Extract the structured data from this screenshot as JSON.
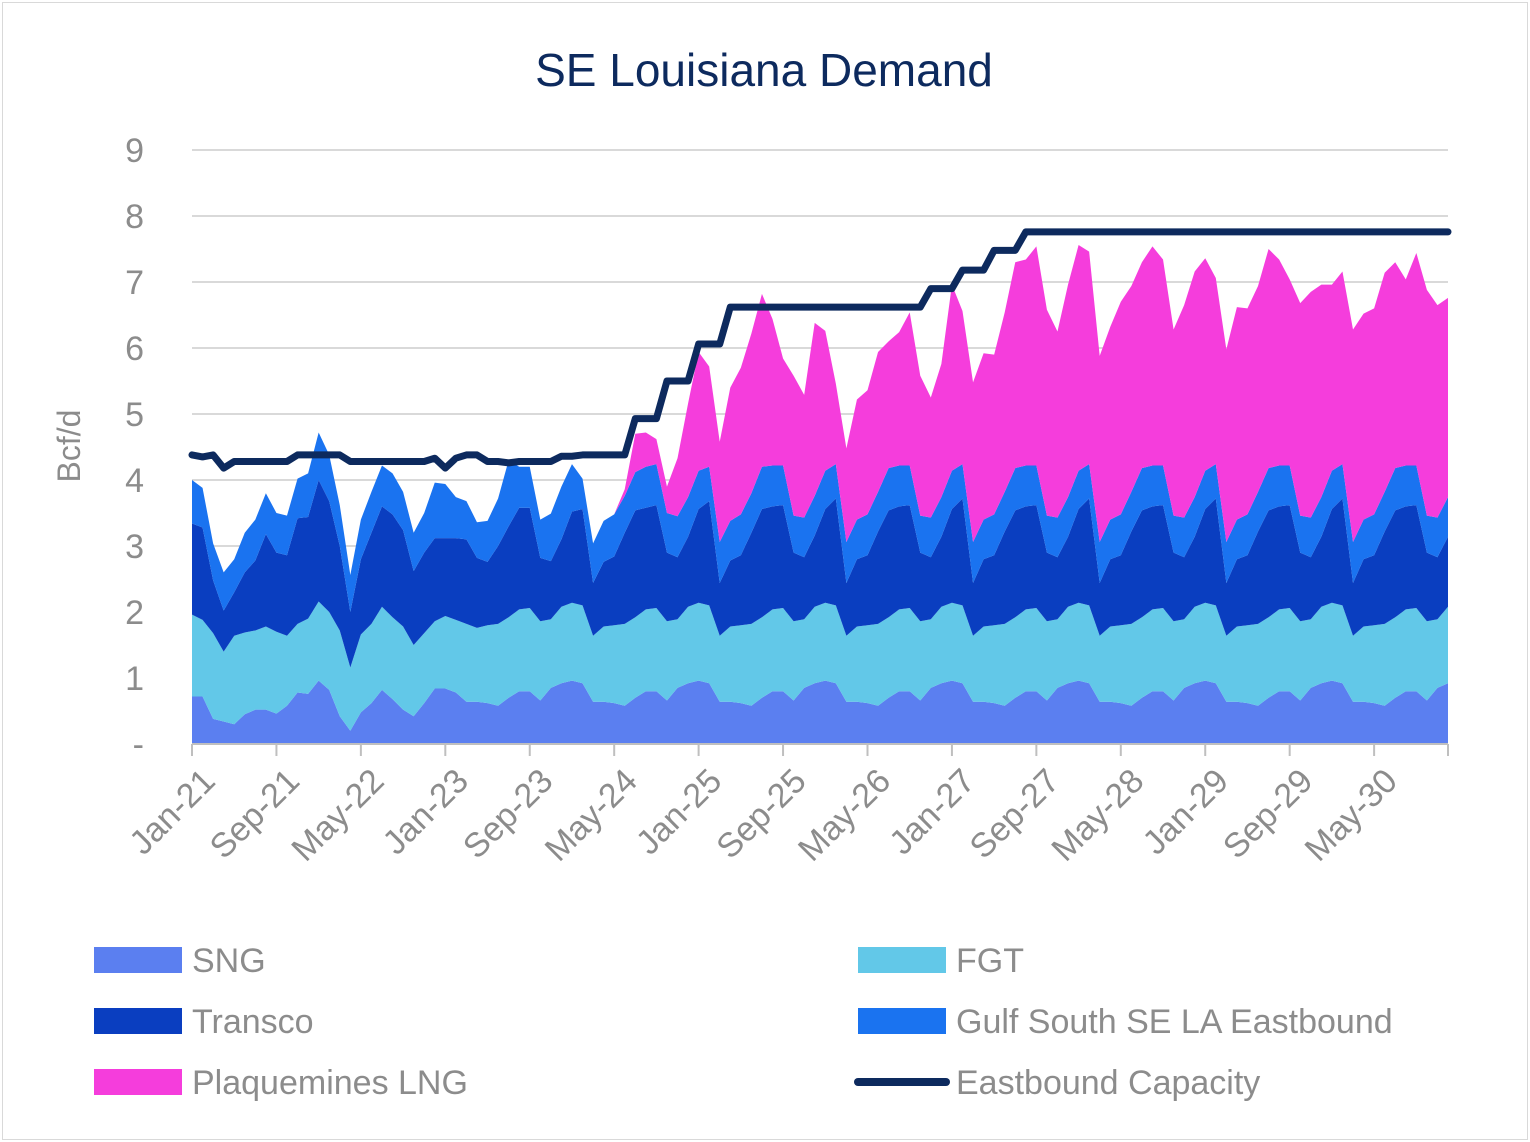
{
  "chart_data": {
    "type": "area",
    "title": "SE Louisiana Demand",
    "ylabel": "Bcf/d",
    "xlabel": "",
    "ylim": [
      0,
      9
    ],
    "yticks": [
      {
        "value": 0,
        "label": "-"
      },
      {
        "value": 1,
        "label": "1"
      },
      {
        "value": 2,
        "label": "2"
      },
      {
        "value": 3,
        "label": "3"
      },
      {
        "value": 4,
        "label": "4"
      },
      {
        "value": 5,
        "label": "5"
      },
      {
        "value": 6,
        "label": "6"
      },
      {
        "value": 7,
        "label": "7"
      },
      {
        "value": 8,
        "label": "8"
      },
      {
        "value": 9,
        "label": "9"
      }
    ],
    "x_start": "Jan-21",
    "x_months": 120,
    "xticks": [
      {
        "month_index": 0,
        "label": "Jan-21"
      },
      {
        "month_index": 8,
        "label": "Sep-21"
      },
      {
        "month_index": 16,
        "label": "May-22"
      },
      {
        "month_index": 24,
        "label": "Jan-23"
      },
      {
        "month_index": 32,
        "label": "Sep-23"
      },
      {
        "month_index": 40,
        "label": "May-24"
      },
      {
        "month_index": 48,
        "label": "Jan-25"
      },
      {
        "month_index": 56,
        "label": "Sep-25"
      },
      {
        "month_index": 64,
        "label": "May-26"
      },
      {
        "month_index": 72,
        "label": "Jan-27"
      },
      {
        "month_index": 80,
        "label": "Sep-27"
      },
      {
        "month_index": 88,
        "label": "May-28"
      },
      {
        "month_index": 96,
        "label": "Jan-29"
      },
      {
        "month_index": 104,
        "label": "Sep-29"
      },
      {
        "month_index": 112,
        "label": "May-30"
      }
    ],
    "grid": true,
    "stacked": true,
    "series": [
      {
        "name": "SNG",
        "kind": "area",
        "color": "#5b7ff0",
        "values": [
          0.72,
          0.72,
          0.38,
          0.34,
          0.3,
          0.45,
          0.52,
          0.52,
          0.46,
          0.58,
          0.78,
          0.76,
          0.96,
          0.82,
          0.42,
          0.2,
          0.48,
          0.62,
          0.82,
          0.68,
          0.52,
          0.42,
          0.62,
          0.84,
          0.84,
          0.78,
          0.64,
          0.64,
          0.62,
          0.58,
          0.7,
          0.8,
          0.8,
          0.66,
          0.85,
          0.92,
          0.96,
          0.92,
          0.64,
          0.64,
          0.62,
          0.58,
          0.7,
          0.8,
          0.8,
          0.66,
          0.85,
          0.92,
          0.96,
          0.92,
          0.64,
          0.64,
          0.62,
          0.58,
          0.7,
          0.8,
          0.8,
          0.66,
          0.85,
          0.92,
          0.96,
          0.92,
          0.64,
          0.64,
          0.62,
          0.58,
          0.7,
          0.8,
          0.8,
          0.66,
          0.85,
          0.92,
          0.96,
          0.92,
          0.64,
          0.64,
          0.62,
          0.58,
          0.7,
          0.8,
          0.8,
          0.66,
          0.85,
          0.92,
          0.96,
          0.92,
          0.64,
          0.64,
          0.62,
          0.58,
          0.7,
          0.8,
          0.8,
          0.66,
          0.85,
          0.92,
          0.96,
          0.92,
          0.64,
          0.64,
          0.62,
          0.58,
          0.7,
          0.8,
          0.8,
          0.66,
          0.85,
          0.92,
          0.96,
          0.92,
          0.64,
          0.64,
          0.62,
          0.58,
          0.7,
          0.8,
          0.8,
          0.66,
          0.85,
          0.92
        ]
      },
      {
        "name": "FGT",
        "kind": "area",
        "color": "#62c8e8",
        "values": [
          1.24,
          1.16,
          1.3,
          1.06,
          1.34,
          1.24,
          1.2,
          1.26,
          1.24,
          1.06,
          1.04,
          1.14,
          1.2,
          1.18,
          1.3,
          0.96,
          1.18,
          1.2,
          1.26,
          1.24,
          1.26,
          1.08,
          1.06,
          1.02,
          1.1,
          1.1,
          1.18,
          1.12,
          1.18,
          1.24,
          1.22,
          1.24,
          1.26,
          1.2,
          1.04,
          1.16,
          1.18,
          1.18,
          1.0,
          1.14,
          1.18,
          1.24,
          1.22,
          1.24,
          1.26,
          1.2,
          1.04,
          1.16,
          1.18,
          1.18,
          1.0,
          1.14,
          1.18,
          1.24,
          1.22,
          1.24,
          1.26,
          1.2,
          1.04,
          1.16,
          1.18,
          1.18,
          1.0,
          1.14,
          1.18,
          1.24,
          1.22,
          1.24,
          1.26,
          1.2,
          1.04,
          1.16,
          1.18,
          1.18,
          1.0,
          1.14,
          1.18,
          1.24,
          1.22,
          1.24,
          1.26,
          1.2,
          1.04,
          1.16,
          1.18,
          1.18,
          1.0,
          1.14,
          1.18,
          1.24,
          1.22,
          1.24,
          1.26,
          1.2,
          1.04,
          1.16,
          1.18,
          1.18,
          1.0,
          1.14,
          1.18,
          1.24,
          1.22,
          1.24,
          1.26,
          1.2,
          1.04,
          1.16,
          1.18,
          1.18,
          1.0,
          1.14,
          1.18,
          1.24,
          1.22,
          1.24,
          1.26,
          1.2,
          1.04,
          1.16
        ]
      },
      {
        "name": "Transco",
        "kind": "area",
        "color": "#0a3ec0",
        "values": [
          1.38,
          1.4,
          0.8,
          0.62,
          0.66,
          0.91,
          1.06,
          1.4,
          1.2,
          1.22,
          1.6,
          1.54,
          1.84,
          1.68,
          1.28,
          0.84,
          1.14,
          1.38,
          1.52,
          1.56,
          1.46,
          1.12,
          1.22,
          1.26,
          1.18,
          1.24,
          1.28,
          1.06,
          0.96,
          1.18,
          1.38,
          1.54,
          1.52,
          0.96,
          0.88,
          1.02,
          1.38,
          1.46,
          0.8,
          0.98,
          1.04,
          1.38,
          1.62,
          1.54,
          1.56,
          1.04,
          0.94,
          1.06,
          1.42,
          1.58,
          0.8,
          1.0,
          1.06,
          1.38,
          1.64,
          1.56,
          1.56,
          1.04,
          0.94,
          1.08,
          1.42,
          1.62,
          0.8,
          1.02,
          1.06,
          1.4,
          1.62,
          1.56,
          1.56,
          1.04,
          0.94,
          1.06,
          1.42,
          1.62,
          0.8,
          1.02,
          1.06,
          1.4,
          1.62,
          1.56,
          1.56,
          1.04,
          0.94,
          1.06,
          1.42,
          1.62,
          0.8,
          1.02,
          1.06,
          1.4,
          1.62,
          1.56,
          1.56,
          1.04,
          0.94,
          1.06,
          1.42,
          1.62,
          0.8,
          1.02,
          1.06,
          1.4,
          1.62,
          1.56,
          1.56,
          1.04,
          0.94,
          1.06,
          1.42,
          1.62,
          0.8,
          1.02,
          1.06,
          1.4,
          1.62,
          1.56,
          1.56,
          1.04,
          0.94,
          1.06
        ]
      },
      {
        "name": "Gulf South SE LA Eastbound",
        "kind": "area",
        "color": "#1a73f0",
        "values": [
          0.66,
          0.6,
          0.56,
          0.58,
          0.5,
          0.6,
          0.62,
          0.62,
          0.6,
          0.6,
          0.6,
          0.66,
          0.72,
          0.7,
          0.62,
          0.56,
          0.6,
          0.62,
          0.62,
          0.62,
          0.58,
          0.58,
          0.6,
          0.84,
          0.82,
          0.62,
          0.58,
          0.54,
          0.62,
          0.72,
          1.0,
          0.62,
          0.62,
          0.58,
          0.72,
          0.8,
          0.72,
          0.46,
          0.6,
          0.62,
          0.64,
          0.56,
          0.58,
          0.62,
          0.62,
          0.6,
          0.62,
          0.6,
          0.58,
          0.52,
          0.62,
          0.6,
          0.62,
          0.6,
          0.64,
          0.62,
          0.6,
          0.56,
          0.6,
          0.6,
          0.58,
          0.52,
          0.62,
          0.6,
          0.62,
          0.6,
          0.64,
          0.62,
          0.6,
          0.56,
          0.6,
          0.6,
          0.58,
          0.52,
          0.62,
          0.6,
          0.62,
          0.6,
          0.64,
          0.62,
          0.6,
          0.56,
          0.6,
          0.6,
          0.58,
          0.52,
          0.62,
          0.6,
          0.62,
          0.6,
          0.64,
          0.62,
          0.6,
          0.56,
          0.6,
          0.6,
          0.58,
          0.52,
          0.62,
          0.6,
          0.62,
          0.6,
          0.64,
          0.62,
          0.6,
          0.56,
          0.6,
          0.6,
          0.58,
          0.52,
          0.62,
          0.6,
          0.62,
          0.6,
          0.64,
          0.62,
          0.6,
          0.56,
          0.6,
          0.6
        ]
      },
      {
        "name": "Plaquemines LNG",
        "kind": "area",
        "color": "#f53ddc",
        "values": [
          0,
          0,
          0,
          0,
          0,
          0,
          0,
          0,
          0,
          0,
          0,
          0,
          0,
          0,
          0,
          0,
          0,
          0,
          0,
          0,
          0,
          0,
          0,
          0,
          0,
          0,
          0,
          0,
          0,
          0,
          0,
          0,
          0,
          0,
          0,
          0,
          0,
          0,
          0,
          0,
          0,
          0.1,
          0.58,
          0.52,
          0.38,
          0.4,
          0.88,
          1.42,
          1.8,
          1.52,
          1.52,
          2.02,
          2.22,
          2.42,
          2.62,
          2.22,
          1.62,
          2.12,
          1.86,
          2.62,
          2.12,
          1.22,
          1.42,
          1.82,
          1.88,
          2.12,
          1.92,
          2.02,
          2.32,
          2.12,
          1.82,
          2.02,
          2.82,
          2.32,
          2.42,
          2.52,
          2.42,
          2.72,
          3.12,
          3.12,
          3.32,
          3.12,
          2.82,
          3.22,
          3.42,
          3.22,
          2.82,
          2.92,
          3.22,
          3.12,
          3.12,
          3.32,
          3.12,
          2.82,
          3.22,
          3.42,
          3.22,
          2.82,
          2.92,
          3.22,
          3.12,
          3.12,
          3.32,
          3.12,
          2.82,
          3.22,
          3.42,
          3.22,
          2.82,
          2.92,
          3.22,
          3.12,
          3.12,
          3.32,
          3.12,
          2.82,
          3.22,
          3.42,
          3.22,
          3.02
        ]
      },
      {
        "name": "Eastbound Capacity",
        "kind": "line",
        "color": "#0d2a5e",
        "values": [
          4.38,
          4.35,
          4.38,
          4.18,
          4.28,
          4.28,
          4.28,
          4.28,
          4.28,
          4.28,
          4.38,
          4.38,
          4.38,
          4.38,
          4.38,
          4.28,
          4.28,
          4.28,
          4.28,
          4.28,
          4.28,
          4.28,
          4.28,
          4.33,
          4.18,
          4.33,
          4.38,
          4.38,
          4.28,
          4.28,
          4.26,
          4.28,
          4.28,
          4.28,
          4.28,
          4.36,
          4.36,
          4.38,
          4.38,
          4.38,
          4.38,
          4.38,
          4.93,
          4.93,
          4.93,
          5.5,
          5.5,
          5.5,
          6.06,
          6.06,
          6.06,
          6.62,
          6.62,
          6.62,
          6.62,
          6.62,
          6.62,
          6.62,
          6.62,
          6.62,
          6.62,
          6.62,
          6.62,
          6.62,
          6.62,
          6.62,
          6.62,
          6.62,
          6.62,
          6.62,
          6.9,
          6.9,
          6.9,
          7.18,
          7.18,
          7.18,
          7.48,
          7.48,
          7.48,
          7.76,
          7.76,
          7.76,
          7.76,
          7.76,
          7.76,
          7.76,
          7.76,
          7.76,
          7.76,
          7.76,
          7.76,
          7.76,
          7.76,
          7.76,
          7.76,
          7.76,
          7.76,
          7.76,
          7.76,
          7.76,
          7.76,
          7.76,
          7.76,
          7.76,
          7.76,
          7.76,
          7.76,
          7.76,
          7.76,
          7.76,
          7.76,
          7.76,
          7.76,
          7.76,
          7.76,
          7.76,
          7.76,
          7.76,
          7.76,
          7.76
        ]
      }
    ],
    "legend": {
      "position": "bottom",
      "columns": 2,
      "items": [
        {
          "label": "SNG",
          "series": 0
        },
        {
          "label": "FGT",
          "series": 1
        },
        {
          "label": "Transco",
          "series": 2
        },
        {
          "label": "Gulf South SE LA Eastbound",
          "series": 3
        },
        {
          "label": "Plaquemines LNG",
          "series": 4
        },
        {
          "label": "Eastbound Capacity",
          "series": 5
        }
      ]
    }
  }
}
